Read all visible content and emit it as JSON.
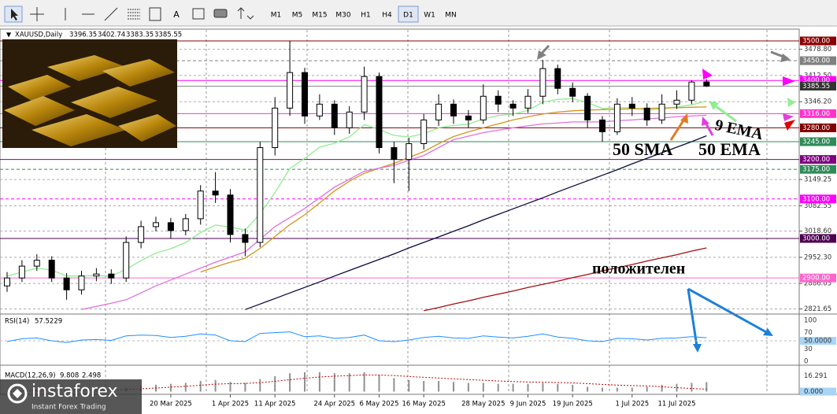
{
  "toolbar": {
    "timeframes": [
      "M1",
      "M5",
      "M15",
      "M30",
      "H1",
      "H4",
      "D1",
      "W1",
      "MN"
    ]
  },
  "chart_data": {
    "type": "candlestick",
    "symbol": "XAUUSD,Daily",
    "ohlc_header": [
      3396.35,
      3402.74,
      3383.35,
      3385.55
    ],
    "categories": [
      null,
      null,
      null,
      null,
      null,
      null,
      null,
      null,
      null,
      null,
      null,
      "20 Mar 2025",
      null,
      null,
      null,
      "1 Apr 2025",
      null,
      null,
      "11 Apr 2025",
      null,
      null,
      null,
      "24 Apr 2025",
      null,
      null,
      "6 May 2025",
      null,
      null,
      "16 May 2025",
      null,
      null,
      null,
      "28 May 2025",
      null,
      null,
      "9 Jun 2025",
      null,
      null,
      "19 Jun 2025",
      null,
      null,
      null,
      "1 Jul 2025",
      null,
      null,
      "11 Jul 2025",
      null,
      null
    ],
    "open": [
      2880,
      2900,
      2930,
      2945,
      2900,
      2870,
      2905,
      2910,
      2900,
      2990,
      3030,
      3040,
      3020,
      3050,
      3120,
      3110,
      3010,
      2990,
      3230,
      3330,
      3420,
      3310,
      3340,
      3280,
      3320,
      3410,
      3230,
      3200,
      3240,
      3300,
      3340,
      3310,
      3300,
      3360,
      3340,
      3330,
      3360,
      3430,
      3380,
      3360,
      3300,
      3270,
      3340,
      3330,
      3300,
      3340,
      3350,
      3396.35
    ],
    "high": [
      2915,
      2945,
      2960,
      2955,
      2912,
      2918,
      2925,
      2922,
      3005,
      3045,
      3055,
      3052,
      3062,
      3135,
      3168,
      3125,
      3025,
      3245,
      3358,
      3500,
      3432,
      3365,
      3350,
      3335,
      3435,
      3420,
      3245,
      3255,
      3315,
      3365,
      3352,
      3325,
      3390,
      3375,
      3350,
      3378,
      3452,
      3440,
      3395,
      3368,
      3310,
      3355,
      3358,
      3342,
      3365,
      3375,
      3400,
      3402.74
    ],
    "low": [
      2865,
      2890,
      2918,
      2890,
      2845,
      2858,
      2892,
      2885,
      2890,
      2975,
      3018,
      3000,
      3008,
      3035,
      3090,
      2990,
      2955,
      2978,
      3210,
      3310,
      3290,
      3300,
      3262,
      3265,
      3300,
      3215,
      3140,
      3120,
      3225,
      3285,
      3290,
      3280,
      3290,
      3320,
      3310,
      3318,
      3340,
      3365,
      3345,
      3280,
      3245,
      3262,
      3310,
      3285,
      3290,
      3328,
      3340,
      3383.35
    ],
    "close": [
      2900,
      2930,
      2945,
      2900,
      2870,
      2905,
      2910,
      2900,
      2990,
      3030,
      3040,
      3020,
      3050,
      3120,
      3110,
      3010,
      2990,
      3230,
      3330,
      3420,
      3310,
      3340,
      3280,
      3320,
      3410,
      3230,
      3200,
      3240,
      3300,
      3340,
      3310,
      3300,
      3360,
      3340,
      3330,
      3360,
      3430,
      3380,
      3360,
      3300,
      3270,
      3340,
      3330,
      3300,
      3340,
      3350,
      3396,
      3385.55
    ],
    "up_color": "#ffffff",
    "down_color": "#000000",
    "ylim": [
      2810.7,
      3527.9
    ],
    "yticks": [
      {
        "value": 3478.8,
        "label": "3478.80"
      },
      {
        "value": 3412.5,
        "label": "3412.50"
      },
      {
        "value": 3346.2,
        "label": "3346.20"
      },
      {
        "value": 3149.25,
        "label": "3149.25"
      },
      {
        "value": 3082.55,
        "label": "3082.55"
      },
      {
        "value": 3018.6,
        "label": "3018.60"
      },
      {
        "value": 2952.3,
        "label": "2952.30"
      },
      {
        "value": 2886.05,
        "label": "2886.05"
      },
      {
        "value": 2821.65,
        "label": "2821.65"
      }
    ],
    "grid": true,
    "levels": [
      {
        "value": 3500,
        "label": "3500.00",
        "color": "#8b0000",
        "dashed": false
      },
      {
        "value": 3450,
        "label": "3450.00",
        "color": "#808080",
        "dashed": true
      },
      {
        "value": 3400,
        "label": "3400.00",
        "color": "#ff00ff",
        "dashed": false
      },
      {
        "value": 3316,
        "label": "3316.00",
        "color": "#ff33cc",
        "dashed": false
      },
      {
        "value": 3280,
        "label": "3280.00",
        "color": "#800000",
        "dashed": false
      },
      {
        "value": 3245,
        "label": "3245.00",
        "color": "#2e8b57",
        "dashed": false
      },
      {
        "value": 3200,
        "label": "3200.00",
        "color": "#800080",
        "dashed": false
      },
      {
        "value": 3175,
        "label": "3175.00",
        "color": "#2e8b57",
        "dashed": true
      },
      {
        "value": 3100,
        "label": "3100.00",
        "color": "#ff00ff",
        "dashed": true
      },
      {
        "value": 3000,
        "label": "3000.00",
        "color": "#4b0050",
        "dashed": false
      },
      {
        "value": 2900,
        "label": "2900.00",
        "color": "#ff66cc",
        "dashed": false
      }
    ],
    "current_price": {
      "value": 3385.55,
      "label": "3385.55"
    },
    "series": [
      {
        "name": "9 EMA",
        "color": "#90ee90",
        "values": [
          2905,
          2915,
          2925,
          2920,
          2905,
          2905,
          2906,
          2905,
          2922,
          2944,
          2963,
          2974,
          2990,
          3015,
          3034,
          3029,
          3021,
          3063,
          3116,
          3177,
          3203,
          3231,
          3241,
          3257,
          3288,
          3276,
          3261,
          3257,
          3265,
          3280,
          3286,
          3289,
          3303,
          3311,
          3315,
          3324,
          3345,
          3352,
          3354,
          3344,
          3329,
          3331,
          3331,
          3325,
          3328,
          3333,
          3338,
          3348
        ]
      },
      {
        "name": "50 SMA",
        "color": "#d2961e",
        "values": [
          null,
          null,
          null,
          null,
          null,
          null,
          null,
          null,
          null,
          null,
          null,
          null,
          null,
          2915,
          2928,
          2940,
          2950,
          2975,
          3005,
          3035,
          3060,
          3090,
          3120,
          3145,
          3165,
          3178,
          3190,
          3205,
          3220,
          3240,
          3258,
          3270,
          3280,
          3290,
          3300,
          3308,
          3315,
          3320,
          3323,
          3325,
          3326,
          3327,
          3328,
          3329,
          3330,
          3331,
          3332,
          3333
        ]
      },
      {
        "name": "50 EMA",
        "color": "#e070e0",
        "values": [
          null,
          null,
          null,
          null,
          null,
          2820,
          2828,
          2836,
          2845,
          2862,
          2880,
          2895,
          2910,
          2925,
          2940,
          2953,
          2966,
          2998,
          3030,
          3053,
          3076,
          3103,
          3130,
          3150,
          3170,
          3178,
          3185,
          3198,
          3210,
          3230,
          3250,
          3259,
          3268,
          3274,
          3280,
          3285,
          3290,
          3292,
          3295,
          3295,
          3295,
          3298,
          3300,
          3303,
          3305,
          3308,
          3310,
          3312
        ]
      },
      {
        "color": "#0a0a3c",
        "values": [
          null,
          null,
          null,
          null,
          null,
          null,
          null,
          null,
          null,
          null,
          null,
          null,
          null,
          null,
          null,
          null,
          2820,
          2834,
          2848,
          2862,
          2876,
          2890,
          2905,
          2919,
          2933,
          2947,
          2961,
          2976,
          2990,
          3004,
          3018,
          3032,
          3047,
          3061,
          3075,
          3089,
          3103,
          3118,
          3132,
          3146,
          3160,
          3174,
          3189,
          3203,
          3217,
          3231,
          3245,
          3260
        ]
      },
      {
        "color": "#a01010",
        "values": [
          null,
          null,
          null,
          null,
          null,
          null,
          null,
          null,
          null,
          null,
          null,
          null,
          null,
          null,
          null,
          null,
          null,
          null,
          null,
          null,
          null,
          null,
          null,
          null,
          null,
          null,
          null,
          null,
          2817,
          2825,
          2834,
          2842,
          2851,
          2859,
          2867,
          2876,
          2884,
          2892,
          2901,
          2909,
          2918,
          2926,
          2934,
          2943,
          2951,
          2959,
          2968,
          2976
        ]
      }
    ],
    "annotations": [
      "положителен"
    ],
    "rsi": {
      "title": "RSI(14)",
      "color": "#1e90ff",
      "ylim": [
        0,
        100
      ],
      "yticks": [
        100,
        70,
        {
          "value": 50,
          "label": "50.0000"
        },
        30,
        0
      ],
      "values": [
        48,
        55,
        57,
        50,
        46,
        52,
        53,
        51,
        62,
        64,
        63,
        58,
        61,
        67,
        64,
        50,
        48,
        68,
        70,
        72,
        60,
        62,
        56,
        58,
        64,
        50,
        48,
        52,
        58,
        61,
        57,
        56,
        62,
        59,
        57,
        61,
        67,
        59,
        56,
        50,
        48,
        56,
        55,
        52,
        56,
        57,
        60,
        57.5229
      ]
    },
    "macd": {
      "title": "MACD(12,26,9)",
      "color": "#909090",
      "signal_color": "#c00000",
      "ylim": [
        -2,
        24
      ],
      "yticks": [
        16.291,
        {
          "value": 0,
          "label": "0.000"
        }
      ],
      "histogram": [
        0,
        1,
        2,
        2,
        1,
        1,
        2,
        2,
        4,
        6,
        7,
        8,
        9,
        11,
        12,
        10,
        9,
        13,
        16,
        19,
        20,
        20,
        19,
        19,
        20,
        17,
        14,
        12,
        11,
        11,
        10,
        9,
        9,
        8,
        8,
        8,
        9,
        8,
        7,
        5,
        4,
        4,
        4,
        5,
        7,
        8,
        9,
        9.808
      ],
      "signal": [
        0,
        0.5,
        1,
        1.5,
        1.5,
        1.4,
        1.5,
        1.6,
        2.1,
        2.9,
        3.7,
        4.6,
        5.5,
        6.6,
        7.7,
        8.2,
        8.4,
        9.3,
        10.6,
        12.3,
        13.8,
        15.1,
        15.9,
        16.5,
        17.2,
        17.1,
        16.5,
        15.6,
        14.7,
        14,
        13.2,
        12.4,
        11.7,
        11,
        10.4,
        9.9,
        9.7,
        9.4,
        9,
        8.2,
        7.4,
        6.7,
        6.2,
        5.9,
        5,
        4,
        3.2,
        2.498
      ]
    }
  },
  "watermark": {
    "brand": "instaforex",
    "tagline": "Instant Forex Trading"
  }
}
